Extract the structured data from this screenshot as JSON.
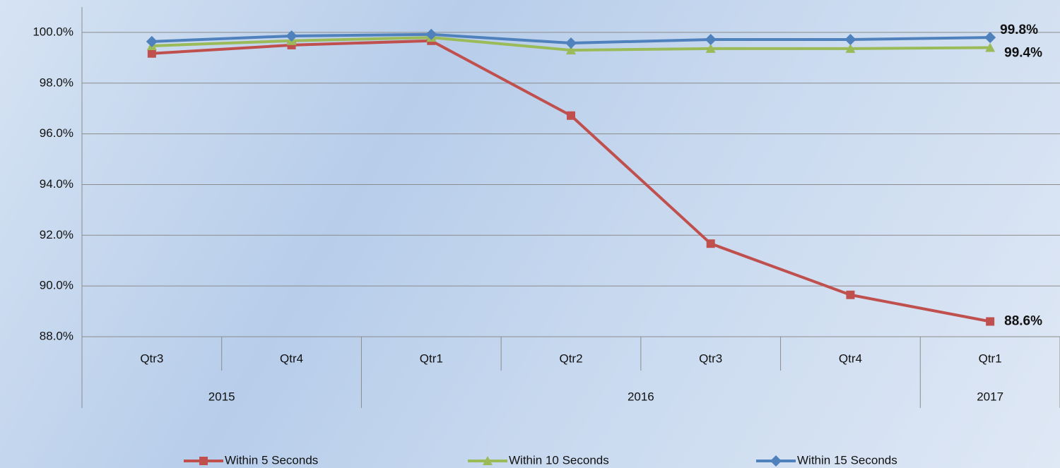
{
  "chart_data": {
    "type": "line",
    "categories": [
      "Qtr3",
      "Qtr4",
      "Qtr1",
      "Qtr2",
      "Qtr3",
      "Qtr4",
      "Qtr1"
    ],
    "category_groups": [
      {
        "name": "2015",
        "start": 0,
        "end": 1
      },
      {
        "name": "2016",
        "start": 2,
        "end": 5
      },
      {
        "name": "2017",
        "start": 6,
        "end": 6
      }
    ],
    "series": [
      {
        "name": "Within 5 Seconds",
        "color": "#c0504d",
        "marker": "square",
        "values": [
          99.17,
          99.5,
          99.67,
          96.72,
          91.67,
          89.65,
          88.6
        ],
        "value_labels": [
          null,
          null,
          null,
          null,
          null,
          null,
          "88.6%"
        ]
      },
      {
        "name": "Within 10 Seconds",
        "color": "#9bbb59",
        "marker": "triangle",
        "values": [
          99.47,
          99.67,
          99.8,
          99.3,
          99.36,
          99.36,
          99.4
        ],
        "value_labels": [
          null,
          null,
          null,
          null,
          null,
          null,
          "99.4%"
        ]
      },
      {
        "name": "Within 15 Seconds",
        "color": "#4f81bd",
        "marker": "diamond",
        "values": [
          99.64,
          99.86,
          99.92,
          99.58,
          99.72,
          99.72,
          99.8
        ],
        "value_labels": [
          null,
          null,
          null,
          null,
          null,
          null,
          "99.8%"
        ]
      }
    ],
    "ylim": [
      88,
      101
    ],
    "yticks": [
      {
        "value": 88,
        "label": "88.0%"
      },
      {
        "value": 90,
        "label": "90.0%"
      },
      {
        "value": 92,
        "label": "92.0%"
      },
      {
        "value": 94,
        "label": "94.0%"
      },
      {
        "value": 96,
        "label": "96.0%"
      },
      {
        "value": 98,
        "label": "98.0%"
      },
      {
        "value": 100,
        "label": "100.0%"
      }
    ],
    "grid": true,
    "legend": "bottom"
  }
}
